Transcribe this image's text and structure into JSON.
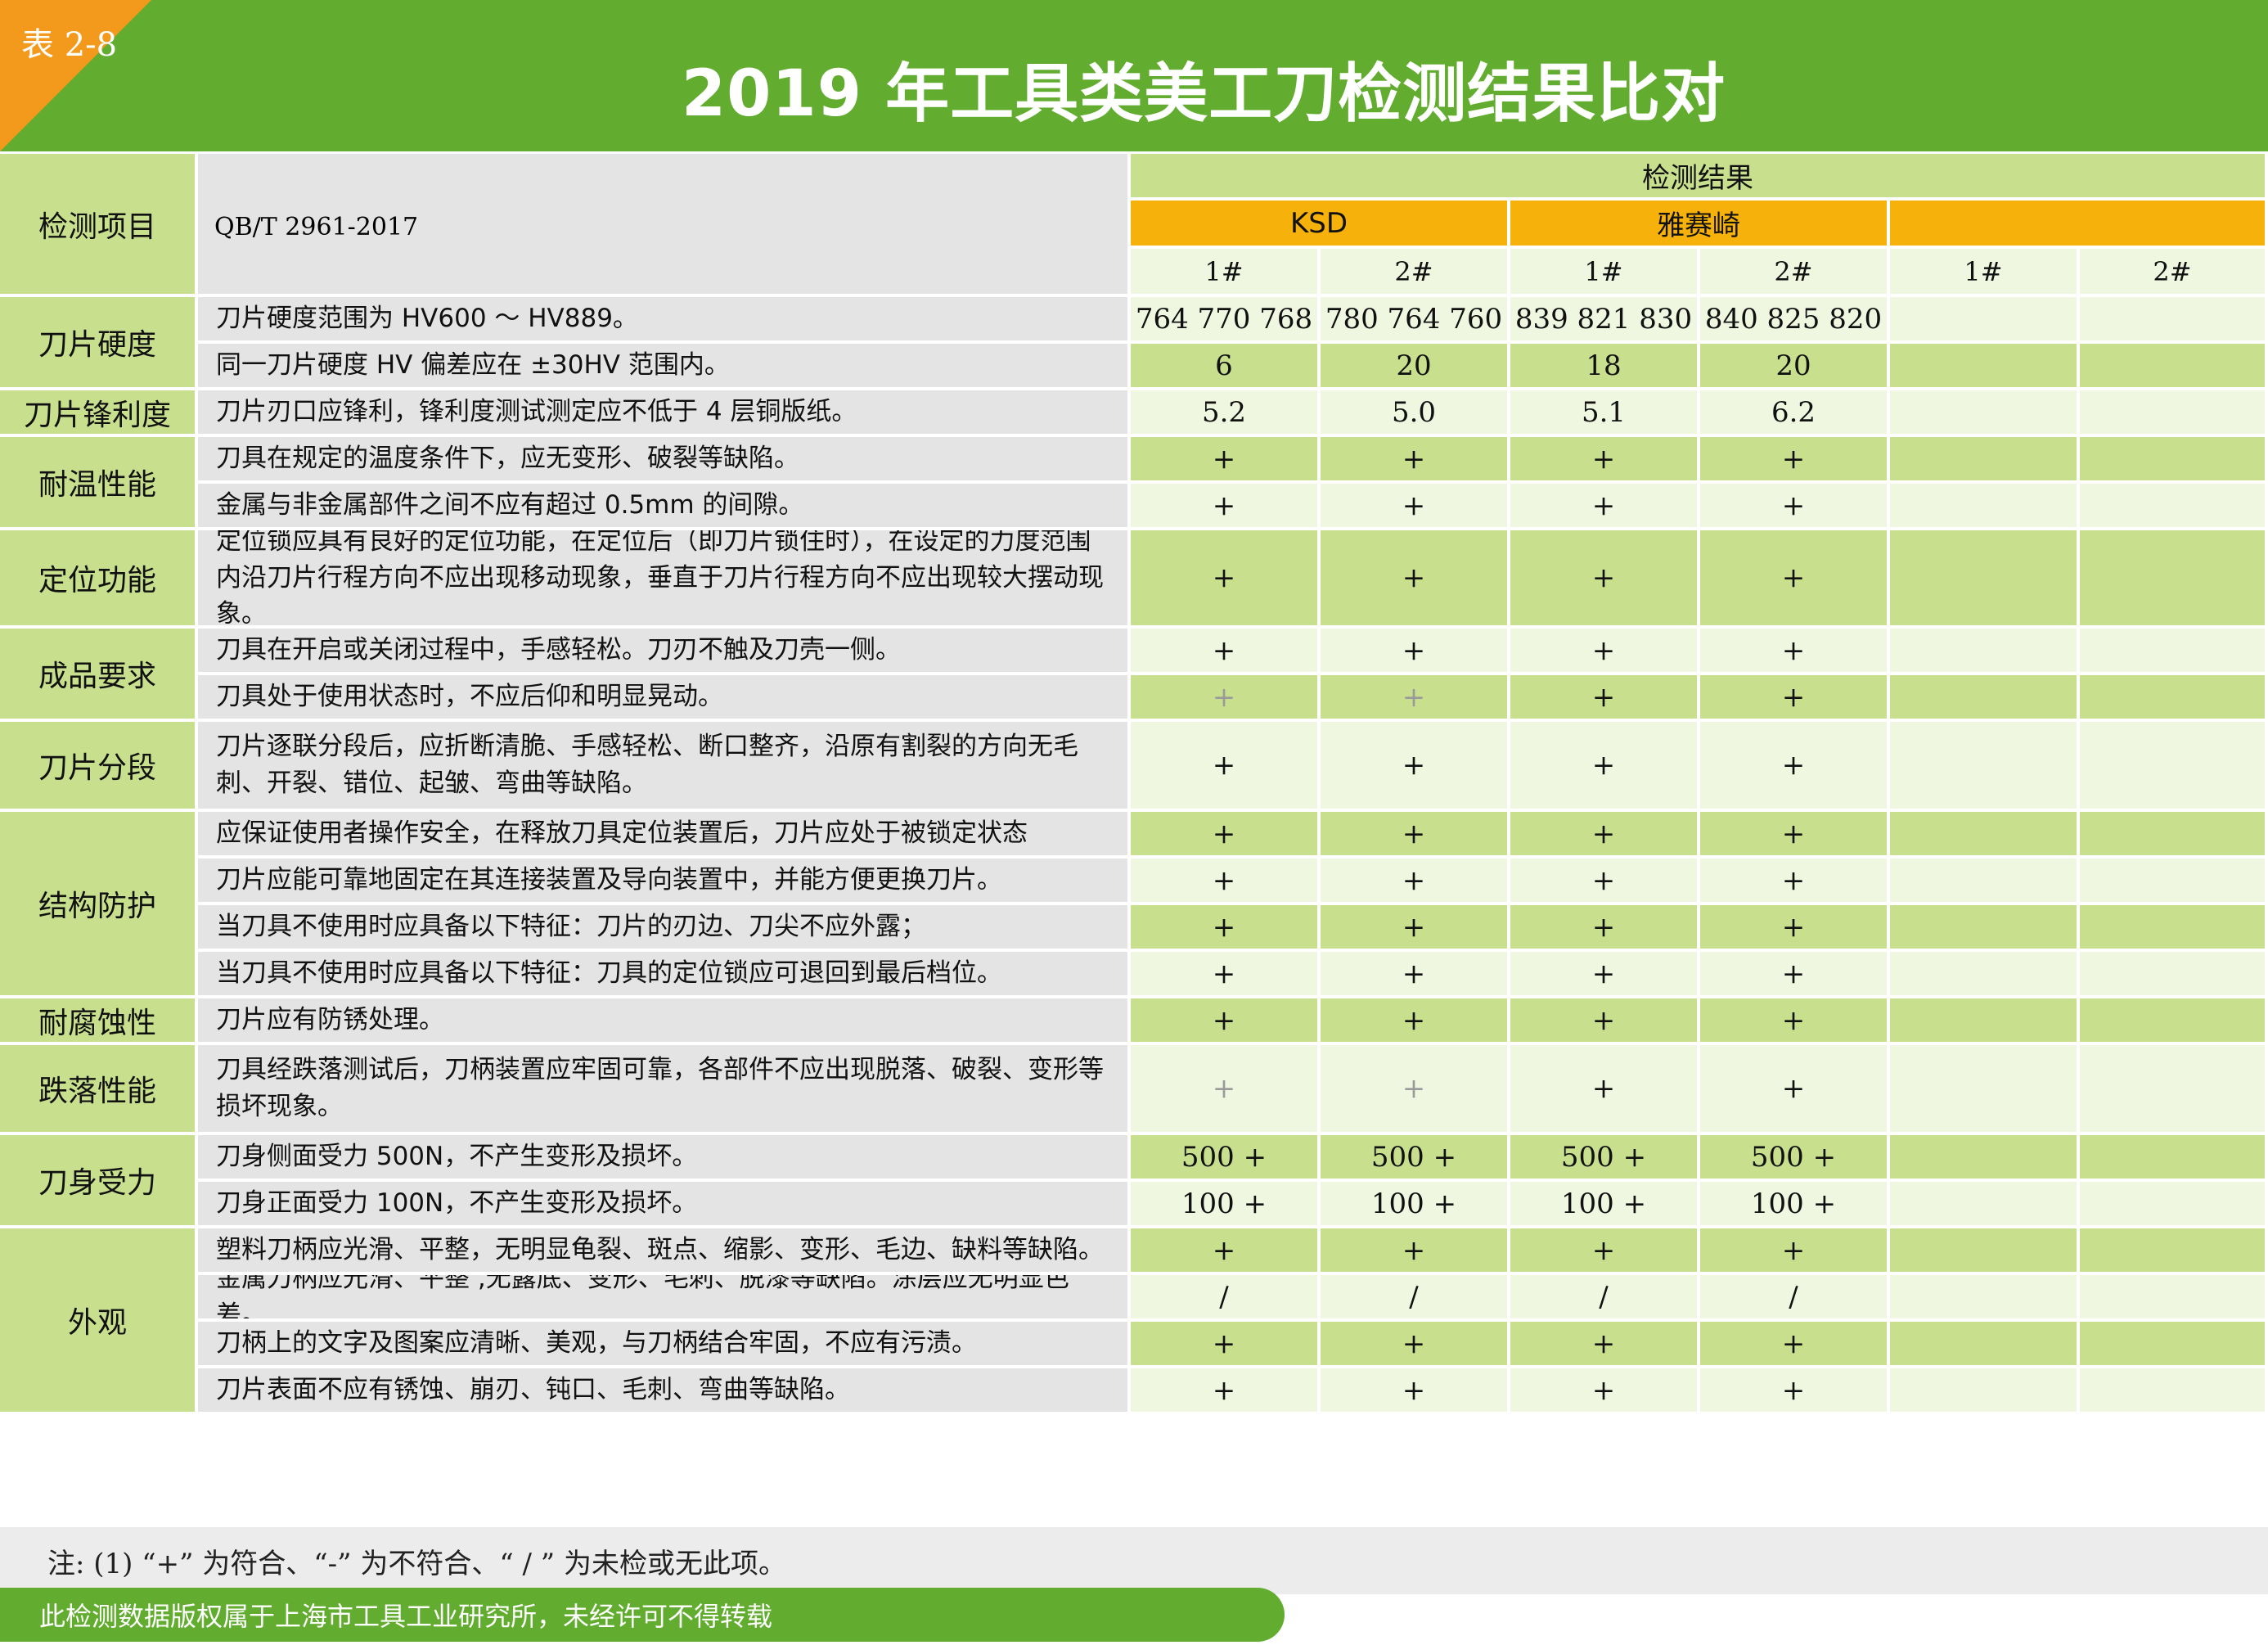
{
  "header": {
    "tag": "表 2-8",
    "title": "2019 年工具类美工刀检测结果比对"
  },
  "table": {
    "col_item": "检测项目",
    "standard": "QB/T 2961-2017",
    "results_title": "检测结果",
    "brands": [
      "KSD",
      "雅赛崎",
      ""
    ],
    "samples": [
      "1#",
      "2#",
      "1#",
      "2#",
      "1#",
      "2#"
    ],
    "categories": [
      {
        "name": "刀片硬度"
      },
      {
        "name": "刀片锋利度"
      },
      {
        "name": "耐温性能"
      },
      {
        "name": "定位功能"
      },
      {
        "name": "成品要求"
      },
      {
        "name": "刀片分段"
      },
      {
        "name": "结构防护"
      },
      {
        "name": "耐腐蚀性"
      },
      {
        "name": "跌落性能"
      },
      {
        "name": "刀身受力"
      },
      {
        "name": "外观"
      }
    ],
    "rows": [
      {
        "req": "刀片硬度范围为 HV600 ～ HV889。",
        "vals": [
          "764 770 768",
          "780 764 760",
          "839 821 830",
          "840 825 820",
          "",
          ""
        ]
      },
      {
        "req": "同一刀片硬度 HV 偏差应在 ±30HV 范围内。",
        "vals": [
          "6",
          "20",
          "18",
          "20",
          "",
          ""
        ]
      },
      {
        "req": "刀片刃口应锋利，锋利度测试测定应不低于 4 层铜版纸。",
        "vals": [
          "5.2",
          "5.0",
          "5.1",
          "6.2",
          "",
          ""
        ]
      },
      {
        "req": "刀具在规定的温度条件下，应无变形、破裂等缺陷。",
        "vals": [
          "+",
          "+",
          "+",
          "+",
          "",
          ""
        ]
      },
      {
        "req": "金属与非金属部件之间不应有超过 0.5mm 的间隙。",
        "vals": [
          "+",
          "+",
          "+",
          "+",
          "",
          ""
        ]
      },
      {
        "req": "定位锁应具有良好的定位功能，在定位后（即刀片锁住时），在设定的力度范围内沿刀片行程方向不应出现移动现象，垂直于刀片行程方向不应出现较大摆动现象。",
        "vals": [
          "+",
          "+",
          "+",
          "+",
          "",
          ""
        ]
      },
      {
        "req": "刀具在开启或关闭过程中，手感轻松。刀刃不触及刀壳一侧。",
        "vals": [
          "+",
          "+",
          "+",
          "+",
          "",
          ""
        ]
      },
      {
        "req": "刀具处于使用状态时，不应后仰和明显晃动。",
        "vals": [
          "+",
          "+",
          "+",
          "+",
          "",
          ""
        ]
      },
      {
        "req": "刀片逐联分段后，应折断清脆、手感轻松、断口整齐，沿原有割裂的方向无毛刺、开裂、错位、起皱、弯曲等缺陷。",
        "vals": [
          "+",
          "+",
          "+",
          "+",
          "",
          ""
        ]
      },
      {
        "req": "应保证使用者操作安全，在释放刀具定位装置后，刀片应处于被锁定状态",
        "vals": [
          "+",
          "+",
          "+",
          "+",
          "",
          ""
        ]
      },
      {
        "req": "刀片应能可靠地固定在其连接装置及导向装置中，并能方便更换刀片。",
        "vals": [
          "+",
          "+",
          "+",
          "+",
          "",
          ""
        ]
      },
      {
        "req": "当刀具不使用时应具备以下特征：刀片的刃边、刀尖不应外露；",
        "vals": [
          "+",
          "+",
          "+",
          "+",
          "",
          ""
        ]
      },
      {
        "req": "当刀具不使用时应具备以下特征：刀具的定位锁应可退回到最后档位。",
        "vals": [
          "+",
          "+",
          "+",
          "+",
          "",
          ""
        ]
      },
      {
        "req": "刀片应有防锈处理。",
        "vals": [
          "+",
          "+",
          "+",
          "+",
          "",
          ""
        ]
      },
      {
        "req": "刀具经跌落测试后，刀柄装置应牢固可靠，各部件不应出现脱落、破裂、变形等损坏现象。",
        "vals": [
          "+",
          "+",
          "+",
          "+",
          "",
          ""
        ]
      },
      {
        "req": "刀身侧面受力 500N，不产生变形及损坏。",
        "vals": [
          "500 +",
          "500 +",
          "500 +",
          "500 +",
          "",
          ""
        ]
      },
      {
        "req": "刀身正面受力 100N，不产生变形及损坏。",
        "vals": [
          "100 +",
          "100 +",
          "100 +",
          "100 +",
          "",
          ""
        ]
      },
      {
        "req": "塑料刀柄应光滑、平整，无明显龟裂、斑点、缩影、变形、毛边、缺料等缺陷。",
        "vals": [
          "+",
          "+",
          "+",
          "+",
          "",
          ""
        ]
      },
      {
        "req": "金属刀柄应光滑、平整 ,无露底、变形、毛刺、脱漆等缺陷。涂层应无明显色差。",
        "vals": [
          "/",
          "/",
          "/",
          "/",
          "",
          ""
        ]
      },
      {
        "req": "刀柄上的文字及图案应清晰、美观，与刀柄结合牢固，不应有污渍。",
        "vals": [
          "+",
          "+",
          "+",
          "+",
          "",
          ""
        ]
      },
      {
        "req": "刀片表面不应有锈蚀、崩刃、钝口、毛刺、弯曲等缺陷。",
        "vals": [
          "+",
          "+",
          "+",
          "+",
          "",
          ""
        ]
      }
    ]
  },
  "footer": {
    "note": "注: (1) “+” 为符合、“-” 为不符合、“ / ” 为未检或无此项。",
    "copyright": "此检测数据版权属于上海市工具工业研究所，未经许可不得转载"
  }
}
